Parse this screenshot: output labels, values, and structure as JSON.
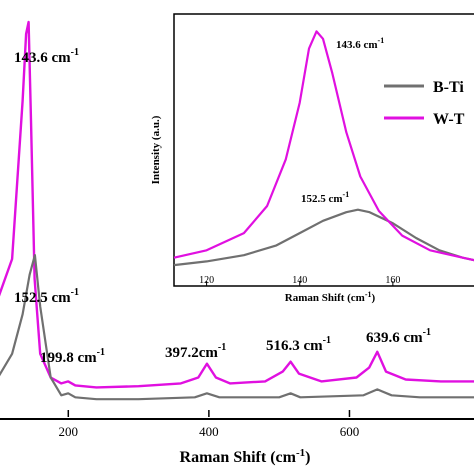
{
  "chart_data": [
    {
      "type": "line",
      "xlabel": "Raman Shift (cm",
      "xlabel_sup": "-1",
      "xlabel_close": ")",
      "xlim": [
        100,
        780
      ],
      "ylim": [
        0,
        1.0
      ],
      "xticks": [
        200,
        400,
        600
      ],
      "series": [
        {
          "color": "#e010e0",
          "x": [
            100,
            120,
            135,
            140,
            143.6,
            147,
            152,
            160,
            175,
            190,
            199.8,
            210,
            240,
            300,
            360,
            385,
            397.2,
            410,
            430,
            480,
            505,
            516.3,
            528,
            560,
            610,
            628,
            639.6,
            652,
            680,
            730,
            780
          ],
          "values": [
            0.3,
            0.4,
            0.8,
            0.97,
            1.0,
            0.75,
            0.35,
            0.16,
            0.1,
            0.085,
            0.09,
            0.08,
            0.075,
            0.078,
            0.085,
            0.1,
            0.135,
            0.1,
            0.085,
            0.09,
            0.115,
            0.14,
            0.11,
            0.09,
            0.1,
            0.125,
            0.165,
            0.115,
            0.095,
            0.09,
            0.09
          ]
        },
        {
          "color": "#707070",
          "x": [
            100,
            120,
            135,
            145,
            152.5,
            160,
            175,
            190,
            199.8,
            210,
            240,
            300,
            380,
            397.2,
            415,
            500,
            516.3,
            530,
            620,
            639.6,
            660,
            700,
            780
          ],
          "values": [
            0.1,
            0.16,
            0.26,
            0.36,
            0.41,
            0.28,
            0.1,
            0.055,
            0.06,
            0.05,
            0.045,
            0.045,
            0.05,
            0.06,
            0.05,
            0.05,
            0.06,
            0.05,
            0.055,
            0.07,
            0.055,
            0.05,
            0.05
          ]
        }
      ],
      "annotations": [
        {
          "text": "143.6 cm",
          "sup": "-1"
        },
        {
          "text": "152.5 cm",
          "sup": "-1"
        },
        {
          "text": "199.8 cm",
          "sup": "-1"
        },
        {
          "text": "397.2cm",
          "sup": "-1"
        },
        {
          "text": "516.3 cm",
          "sup": "-1"
        },
        {
          "text": "639.6 cm",
          "sup": "-1"
        }
      ]
    },
    {
      "type": "line",
      "xlabel": "Raman Shift (cm",
      "xlabel_sup": "-1",
      "xlabel_close": ")",
      "ylabel": "Intensity (a.u.)",
      "xlim": [
        113,
        180
      ],
      "ylim": [
        0,
        1.0
      ],
      "xticks": [
        120,
        140,
        160
      ],
      "legend_position": "right",
      "series": [
        {
          "name": "B-Ti",
          "color": "#707070",
          "x": [
            113,
            120,
            128,
            135,
            140,
            145,
            150,
            152.5,
            155,
            160,
            165,
            170,
            175,
            180
          ],
          "values": [
            0.02,
            0.035,
            0.06,
            0.1,
            0.15,
            0.2,
            0.235,
            0.245,
            0.235,
            0.19,
            0.13,
            0.08,
            0.05,
            0.03
          ]
        },
        {
          "name": "W-T",
          "color": "#e010e0",
          "x": [
            113,
            120,
            128,
            133,
            137,
            140,
            142,
            143.6,
            145,
            147,
            150,
            153,
            157,
            162,
            168,
            175,
            180
          ],
          "values": [
            0.05,
            0.08,
            0.15,
            0.26,
            0.45,
            0.68,
            0.9,
            0.97,
            0.94,
            0.8,
            0.56,
            0.38,
            0.24,
            0.14,
            0.08,
            0.05,
            0.03
          ]
        }
      ],
      "annotations": [
        {
          "text": "143.6 cm",
          "sup": "-1"
        },
        {
          "text": "152.5 cm",
          "sup": "-1"
        }
      ]
    }
  ]
}
